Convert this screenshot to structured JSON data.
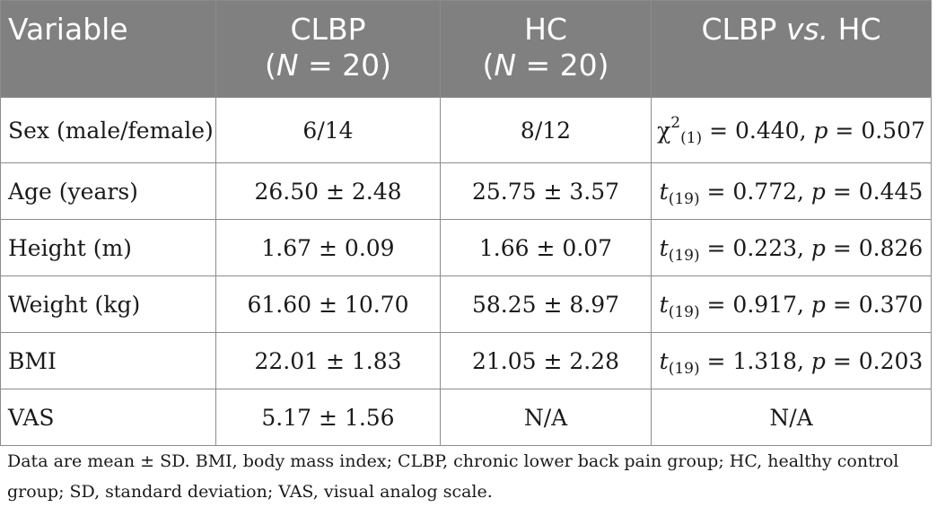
{
  "table": {
    "headers": {
      "variable": "Variable",
      "clbp": {
        "name": "CLBP",
        "n_prefix": "(",
        "n_var": "N",
        "n_suffix": " = 20)"
      },
      "hc": {
        "name": "HC",
        "n_prefix": "(",
        "n_var": "N",
        "n_suffix": " = 20)"
      },
      "comparison": {
        "left": "CLBP ",
        "vs": "vs.",
        "right": " HC"
      }
    },
    "rows": [
      {
        "variable": "Sex (male/female)",
        "clbp": "6/14",
        "hc": "8/12",
        "stat": {
          "symbol": "χ",
          "sup": "2",
          "sub": "(1)",
          "value": " = 0.440, ",
          "p_label": "p",
          "p_value": " = 0.507"
        }
      },
      {
        "variable": "Age (years)",
        "clbp": "26.50 ± 2.48",
        "hc": "25.75 ± 3.57",
        "stat": {
          "symbol": "t",
          "sub": "(19)",
          "value": " = 0.772, ",
          "p_label": "p",
          "p_value": " = 0.445"
        }
      },
      {
        "variable": "Height (m)",
        "clbp": "1.67 ± 0.09",
        "hc": "1.66 ± 0.07",
        "stat": {
          "symbol": "t",
          "sub": "(19)",
          "value": " = 0.223, ",
          "p_label": "p",
          "p_value": " = 0.826"
        }
      },
      {
        "variable": "Weight (kg)",
        "clbp": "61.60 ± 10.70",
        "hc": "58.25 ± 8.97",
        "stat": {
          "symbol": "t",
          "sub": "(19)",
          "value": " = 0.917, ",
          "p_label": "p",
          "p_value": " = 0.370"
        }
      },
      {
        "variable": "BMI",
        "clbp": "22.01 ± 1.83",
        "hc": "21.05 ± 2.28",
        "stat": {
          "symbol": "t",
          "sub": "(19)",
          "value": " = 1.318, ",
          "p_label": "p",
          "p_value": " = 0.203"
        }
      },
      {
        "variable": "VAS",
        "clbp": "5.17 ± 1.56",
        "hc": "N/A",
        "stat_text": "N/A"
      }
    ]
  },
  "footnote": "Data are mean ± SD. BMI, body mass index; CLBP, chronic lower back pain group; HC, healthy control group; SD, standard deviation; VAS, visual analog scale.",
  "colors": {
    "header_bg": "#808080",
    "header_text": "#ffffff",
    "border": "#8c8c8c",
    "body_text": "#1a1a1a"
  }
}
